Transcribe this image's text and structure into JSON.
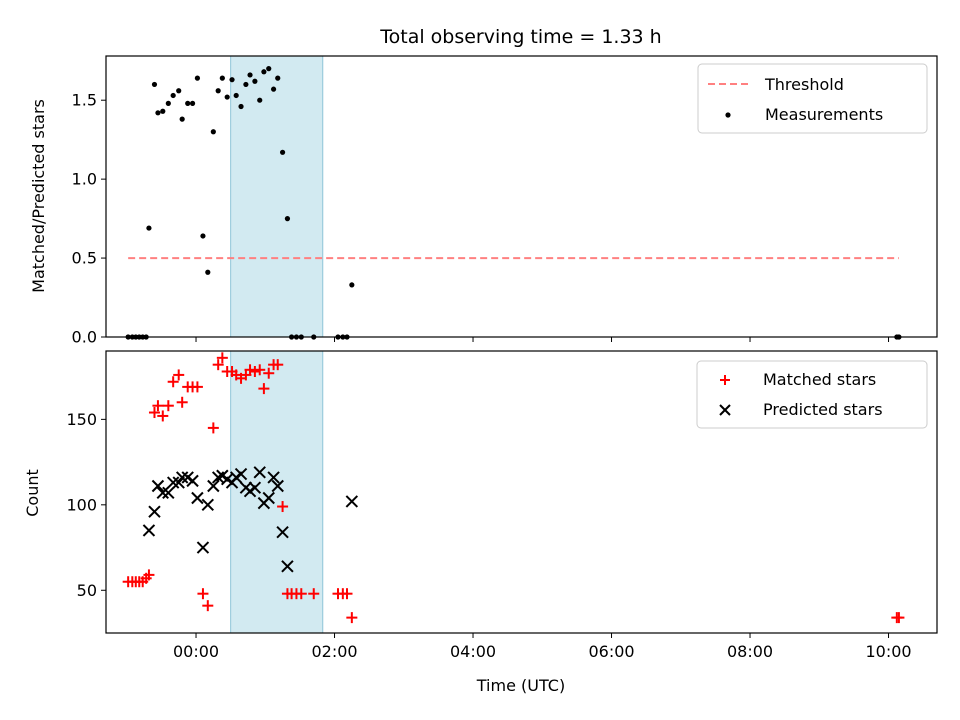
{
  "chart_data": [
    {
      "type": "scatter",
      "title": "Total observing time = 1.33 h",
      "xlabel": "",
      "ylabel": "Matched/Predicted stars",
      "xlim": [
        -1.3,
        10.7
      ],
      "ylim": [
        0.0,
        1.78
      ],
      "x_unit": "hours (UTC)",
      "yticks": [
        0.0,
        0.5,
        1.0,
        1.5
      ],
      "ytick_labels": [
        "0.0",
        "0.5",
        "1.0",
        "1.5"
      ],
      "shaded_interval": [
        0.5,
        1.83
      ],
      "shade_color": "#add8e6",
      "threshold": {
        "name": "Threshold",
        "value": 0.5,
        "x_range": [
          -0.98,
          10.15
        ],
        "color": "#ff8080",
        "style": "dashed"
      },
      "series": [
        {
          "name": "Measurements",
          "color": "#000000",
          "marker": "dot",
          "points": [
            [
              -0.98,
              0.0
            ],
            [
              -0.92,
              0.0
            ],
            [
              -0.87,
              0.0
            ],
            [
              -0.82,
              0.0
            ],
            [
              -0.77,
              0.0
            ],
            [
              -0.72,
              0.0
            ],
            [
              -0.68,
              0.69
            ],
            [
              -0.6,
              1.6
            ],
            [
              -0.55,
              1.42
            ],
            [
              -0.48,
              1.43
            ],
            [
              -0.4,
              1.48
            ],
            [
              -0.33,
              1.53
            ],
            [
              -0.25,
              1.56
            ],
            [
              -0.2,
              1.38
            ],
            [
              -0.12,
              1.48
            ],
            [
              -0.05,
              1.48
            ],
            [
              0.02,
              1.64
            ],
            [
              0.1,
              0.64
            ],
            [
              0.17,
              0.41
            ],
            [
              0.25,
              1.3
            ],
            [
              0.32,
              1.56
            ],
            [
              0.38,
              1.64
            ],
            [
              0.45,
              1.52
            ],
            [
              0.52,
              1.63
            ],
            [
              0.58,
              1.53
            ],
            [
              0.65,
              1.46
            ],
            [
              0.72,
              1.6
            ],
            [
              0.78,
              1.66
            ],
            [
              0.85,
              1.62
            ],
            [
              0.92,
              1.5
            ],
            [
              0.98,
              1.68
            ],
            [
              1.05,
              1.7
            ],
            [
              1.12,
              1.57
            ],
            [
              1.18,
              1.64
            ],
            [
              1.25,
              1.17
            ],
            [
              1.32,
              0.75
            ],
            [
              1.38,
              0.0
            ],
            [
              1.45,
              0.0
            ],
            [
              1.52,
              0.0
            ],
            [
              1.7,
              0.0
            ],
            [
              2.05,
              0.0
            ],
            [
              2.12,
              0.0
            ],
            [
              2.18,
              0.0
            ],
            [
              2.25,
              0.33
            ],
            [
              10.12,
              0.0
            ],
            [
              10.15,
              0.0
            ]
          ]
        }
      ],
      "legend": {
        "position": "upper right",
        "entries": [
          "Threshold",
          "Measurements"
        ]
      }
    },
    {
      "type": "scatter",
      "title": "",
      "xlabel": "Time (UTC)",
      "ylabel": "Count",
      "xlim": [
        -1.3,
        10.7
      ],
      "ylim": [
        25,
        190
      ],
      "yticks": [
        50,
        100,
        150
      ],
      "ytick_labels": [
        "50",
        "100",
        "150"
      ],
      "xticks": [
        0,
        2,
        4,
        6,
        8,
        10
      ],
      "xtick_labels": [
        "00:00",
        "02:00",
        "04:00",
        "06:00",
        "08:00",
        "10:00"
      ],
      "shaded_interval": [
        0.5,
        1.83
      ],
      "shade_color": "#add8e6",
      "series": [
        {
          "name": "Matched stars",
          "color": "#ff0000",
          "marker": "plus",
          "points": [
            [
              -0.98,
              55
            ],
            [
              -0.92,
              55
            ],
            [
              -0.87,
              55
            ],
            [
              -0.82,
              55
            ],
            [
              -0.77,
              55
            ],
            [
              -0.72,
              57
            ],
            [
              -0.68,
              59
            ],
            [
              -0.6,
              154
            ],
            [
              -0.55,
              158
            ],
            [
              -0.48,
              152
            ],
            [
              -0.4,
              158
            ],
            [
              -0.33,
              172
            ],
            [
              -0.25,
              176
            ],
            [
              -0.2,
              160
            ],
            [
              -0.12,
              169
            ],
            [
              -0.05,
              169
            ],
            [
              0.02,
              169
            ],
            [
              0.1,
              48
            ],
            [
              0.17,
              41
            ],
            [
              0.25,
              145
            ],
            [
              0.32,
              182
            ],
            [
              0.38,
              186
            ],
            [
              0.45,
              178
            ],
            [
              0.52,
              178
            ],
            [
              0.58,
              176
            ],
            [
              0.65,
              174
            ],
            [
              0.72,
              176
            ],
            [
              0.78,
              179
            ],
            [
              0.85,
              178
            ],
            [
              0.92,
              179
            ],
            [
              0.98,
              168
            ],
            [
              1.05,
              177
            ],
            [
              1.12,
              182
            ],
            [
              1.18,
              182
            ],
            [
              1.25,
              99
            ],
            [
              1.32,
              48
            ],
            [
              1.38,
              48
            ],
            [
              1.45,
              48
            ],
            [
              1.52,
              48
            ],
            [
              1.7,
              48
            ],
            [
              2.05,
              48
            ],
            [
              2.12,
              48
            ],
            [
              2.18,
              48
            ],
            [
              2.25,
              34
            ],
            [
              10.12,
              34
            ],
            [
              10.15,
              34
            ]
          ]
        },
        {
          "name": "Predicted stars",
          "color": "#000000",
          "marker": "cross",
          "points": [
            [
              -0.68,
              85
            ],
            [
              -0.6,
              96
            ],
            [
              -0.55,
              111
            ],
            [
              -0.48,
              107
            ],
            [
              -0.4,
              107
            ],
            [
              -0.33,
              113
            ],
            [
              -0.25,
              113
            ],
            [
              -0.2,
              116
            ],
            [
              -0.12,
              116
            ],
            [
              -0.05,
              114
            ],
            [
              0.02,
              104
            ],
            [
              0.1,
              75
            ],
            [
              0.17,
              100
            ],
            [
              0.25,
              111
            ],
            [
              0.32,
              116
            ],
            [
              0.38,
              117
            ],
            [
              0.45,
              115
            ],
            [
              0.52,
              113
            ],
            [
              0.58,
              116
            ],
            [
              0.65,
              118
            ],
            [
              0.72,
              110
            ],
            [
              0.78,
              108
            ],
            [
              0.85,
              110
            ],
            [
              0.92,
              119
            ],
            [
              0.98,
              101
            ],
            [
              1.05,
              104
            ],
            [
              1.12,
              116
            ],
            [
              1.18,
              111
            ],
            [
              1.25,
              84
            ],
            [
              1.32,
              64
            ],
            [
              2.25,
              102
            ]
          ]
        }
      ],
      "legend": {
        "position": "upper right",
        "entries": [
          "Matched stars",
          "Predicted stars"
        ]
      }
    }
  ]
}
